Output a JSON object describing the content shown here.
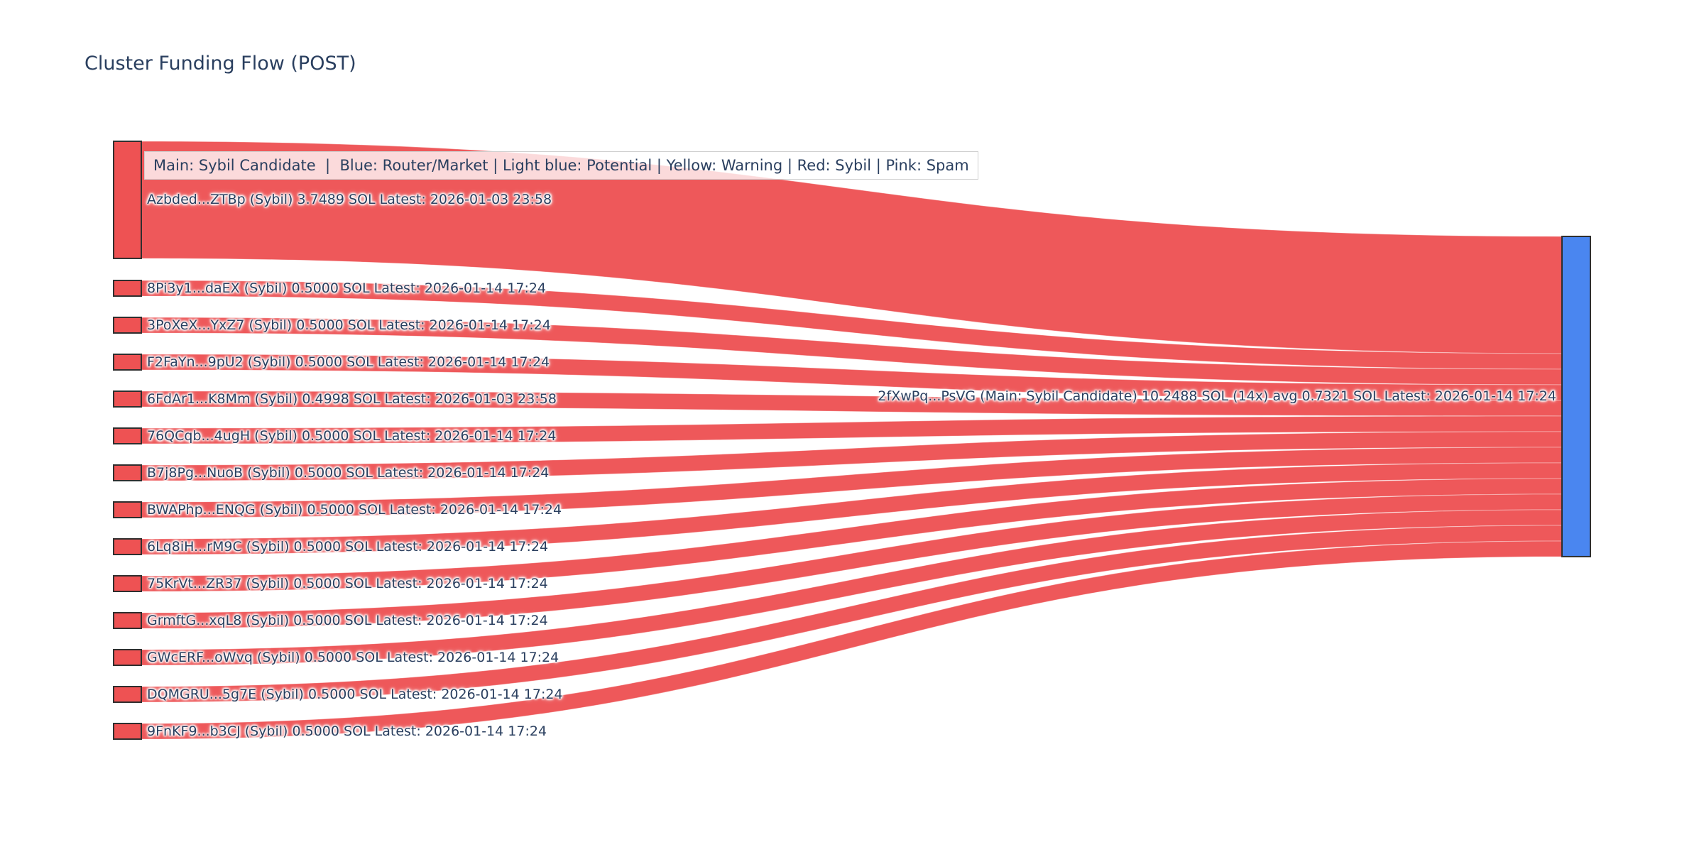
{
  "title": "Cluster Funding Flow (POST)",
  "legend_note": "Main: Sybil Candidate  |  Blue: Router/Market | Light blue: Potential | Yellow: Warning | Red: Sybil | Pink: Spam",
  "colors": {
    "node_red": "#ee5253",
    "link_red": "#ee585a",
    "node_blue": "#4a86f0",
    "node_border": "#2f2f2f",
    "text": "#2a3f5f",
    "background": "#ffffff"
  },
  "chart_data": {
    "type": "sankey",
    "orientation": "horizontal",
    "unit": "SOL",
    "title": "Cluster Funding Flow (POST)",
    "target_node": {
      "label": "2fXwPq...PsVG (Main: Sybil Candidate) 10.2488 SOL (14x) avg 0.7321 SOL Latest: 2026-01-14 17:24",
      "address_short": "2fXwPq...PsVG",
      "role": "Main: Sybil Candidate",
      "total_sol": 10.2488,
      "inflow_count": 14,
      "avg_sol": 0.7321,
      "latest": "2026-01-14 17:24",
      "color_key": "node_blue"
    },
    "source_nodes": [
      {
        "label": "Azbded...ZTBp (Sybil) 3.7489 SOL Latest: 2026-01-03 23:58",
        "address_short": "Azbded...ZTBp",
        "role": "Sybil",
        "value": 3.7489,
        "latest": "2026-01-03 23:58"
      },
      {
        "label": "8Pi3y1...daEX (Sybil) 0.5000 SOL Latest: 2026-01-14 17:24",
        "address_short": "8Pi3y1...daEX",
        "role": "Sybil",
        "value": 0.5,
        "latest": "2026-01-14 17:24"
      },
      {
        "label": "3PoXeX...YxZ7 (Sybil) 0.5000 SOL Latest: 2026-01-14 17:24",
        "address_short": "3PoXeX...YxZ7",
        "role": "Sybil",
        "value": 0.5,
        "latest": "2026-01-14 17:24"
      },
      {
        "label": "F2FaYn...9pU2 (Sybil) 0.5000 SOL Latest: 2026-01-14 17:24",
        "address_short": "F2FaYn...9pU2",
        "role": "Sybil",
        "value": 0.5,
        "latest": "2026-01-14 17:24"
      },
      {
        "label": "6FdAr1...K8Mm (Sybil) 0.4998 SOL Latest: 2026-01-03 23:58",
        "address_short": "6FdAr1...K8Mm",
        "role": "Sybil",
        "value": 0.4998,
        "latest": "2026-01-03 23:58"
      },
      {
        "label": "76QCqb...4ugH (Sybil) 0.5000 SOL Latest: 2026-01-14 17:24",
        "address_short": "76QCqb...4ugH",
        "role": "Sybil",
        "value": 0.5,
        "latest": "2026-01-14 17:24"
      },
      {
        "label": "B7j8Pg...NuoB (Sybil) 0.5000 SOL Latest: 2026-01-14 17:24",
        "address_short": "B7j8Pg...NuoB",
        "role": "Sybil",
        "value": 0.5,
        "latest": "2026-01-14 17:24"
      },
      {
        "label": "BWAPhp...ENQG (Sybil) 0.5000 SOL Latest: 2026-01-14 17:24",
        "address_short": "BWAPhp...ENQG",
        "role": "Sybil",
        "value": 0.5,
        "latest": "2026-01-14 17:24"
      },
      {
        "label": "6Lq8iH...rM9C (Sybil) 0.5000 SOL Latest: 2026-01-14 17:24",
        "address_short": "6Lq8iH...rM9C",
        "role": "Sybil",
        "value": 0.5,
        "latest": "2026-01-14 17:24"
      },
      {
        "label": "75KrVt...ZR37 (Sybil) 0.5000 SOL Latest: 2026-01-14 17:24",
        "address_short": "75KrVt...ZR37",
        "role": "Sybil",
        "value": 0.5,
        "latest": "2026-01-14 17:24"
      },
      {
        "label": "GrmftG...xqL8 (Sybil) 0.5000 SOL Latest: 2026-01-14 17:24",
        "address_short": "GrmftG...xqL8",
        "role": "Sybil",
        "value": 0.5,
        "latest": "2026-01-14 17:24"
      },
      {
        "label": "GWcERF...oWvq (Sybil) 0.5000 SOL Latest: 2026-01-14 17:24",
        "address_short": "GWcERF...oWvq",
        "role": "Sybil",
        "value": 0.5,
        "latest": "2026-01-14 17:24"
      },
      {
        "label": "DQMGRU...5g7E (Sybil) 0.5000 SOL Latest: 2026-01-14 17:24",
        "address_short": "DQMGRU...5g7E",
        "role": "Sybil",
        "value": 0.5,
        "latest": "2026-01-14 17:24"
      },
      {
        "label": "9FnKF9...b3CJ (Sybil) 0.5000 SOL Latest: 2026-01-14 17:24",
        "address_short": "9FnKF9...b3CJ",
        "role": "Sybil",
        "value": 0.5,
        "latest": "2026-01-14 17:24"
      }
    ],
    "links": "each source_node flows its full value into target_node",
    "legend_position": "top-left annotation box"
  }
}
